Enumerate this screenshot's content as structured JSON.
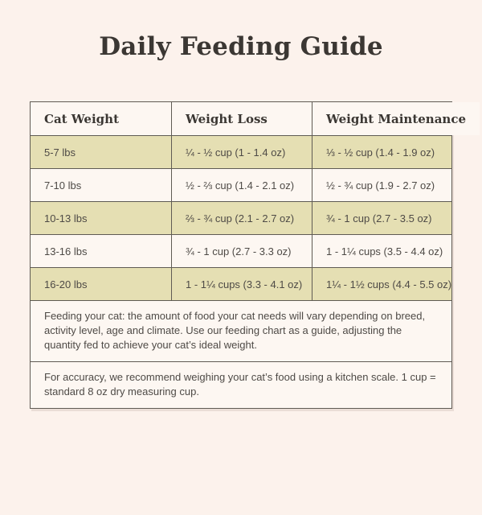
{
  "chart_data": {
    "type": "table",
    "title": "Daily Feeding Guide",
    "columns": [
      "Cat Weight",
      "Weight Loss",
      "Weight Maintenance"
    ],
    "rows": [
      [
        "5-7 lbs",
        "¼ - ½ cup (1 - 1.4 oz)",
        "⅓ - ½ cup (1.4 - 1.9 oz)"
      ],
      [
        "7-10 lbs",
        "½ - ⅔ cup (1.4 - 2.1 oz)",
        "½ - ¾ cup (1.9 - 2.7 oz)"
      ],
      [
        "10-13 lbs",
        "⅔ - ¾ cup (2.1 - 2.7 oz)",
        "¾ - 1 cup (2.7 - 3.5 oz)"
      ],
      [
        "13-16 lbs",
        "¾ - 1 cup (2.7 - 3.3 oz)",
        "1 - 1¼ cups (3.5 - 4.4 oz)"
      ],
      [
        "16-20 lbs",
        "1 - 1¼ cups (3.3 - 4.1 oz)",
        "1¼ - 1½ cups (4.4 - 5.5 oz)"
      ]
    ],
    "notes": [
      "Feeding your cat: the amount of food your cat needs will vary depending on breed, activity level, age and climate. Use our feeding chart as a guide, adjusting the quantity fed to achieve your cat’s ideal weight.",
      "For accuracy, we recommend weighing your cat’s food using a kitchen scale. 1 cup = standard 8 oz dry measuring cup."
    ],
    "layout": {
      "legend": "none",
      "grid": "bordered-table",
      "row_striping": "alternating tan rows starting with first data row"
    }
  },
  "colors": {
    "page_background": "#fcf2ec",
    "cell_background": "#fdf7f2",
    "accent_row_background": "#e5dfb3",
    "border": "#5f5b54",
    "title_text": "#3b3733",
    "body_text": "#4e4a46"
  }
}
